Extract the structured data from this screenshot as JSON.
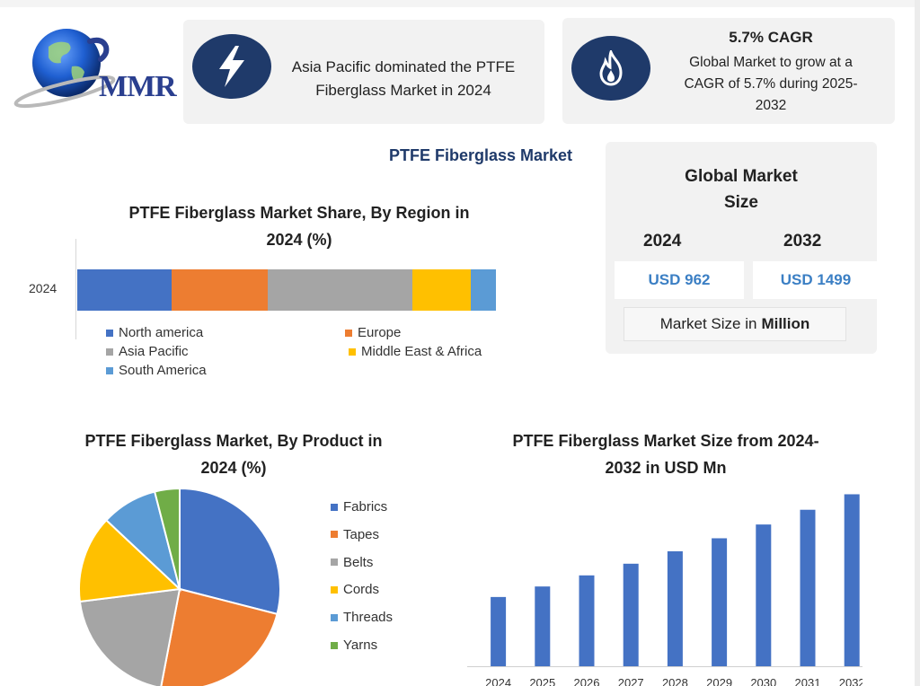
{
  "brand": {
    "logo_text": "MMR"
  },
  "header": {
    "card1": {
      "icon": "lightning-bolt-icon",
      "text_line1": "Asia Pacific dominated the PTFE",
      "text_line2": "Fiberglass Market in 2024"
    },
    "card2": {
      "icon": "flame-icon",
      "title": "5.7% CAGR",
      "text_line1": "Global Market to grow at a",
      "text_line2": "CAGR of 5.7% during 2025-",
      "text_line3": "2032"
    }
  },
  "main_title": "PTFE Fiberglass Market",
  "global_market_size": {
    "title_line1": "Global Market",
    "title_line2": "Size",
    "year1": "2024",
    "year2": "2032",
    "value1": "USD 962",
    "value2": "USD 1499",
    "unit_prefix": "Market Size in",
    "unit_bold": "Million"
  },
  "colors": {
    "north_america": "#4472c4",
    "europe": "#ed7d31",
    "asia_pacific": "#a5a5a5",
    "mea": "#ffc000",
    "south_america": "#5b9bd5",
    "yarns": "#70ad47",
    "navy": "#1f3a6a"
  },
  "chart_data": [
    {
      "type": "bar",
      "stacked": true,
      "orientation": "horizontal",
      "title_line1": "PTFE Fiberglass Market Share, By Region in",
      "title_line2": "2024 (%)",
      "categories": [
        "2024"
      ],
      "series": [
        {
          "name": "North america",
          "color": "#4472c4",
          "values": [
            22.5
          ]
        },
        {
          "name": "Europe",
          "color": "#ed7d31",
          "values": [
            23
          ]
        },
        {
          "name": "Asia Pacific",
          "color": "#a5a5a5",
          "values": [
            34.5
          ]
        },
        {
          "name": "Middle East & Africa",
          "color": "#ffc000",
          "values": [
            14
          ]
        },
        {
          "name": "South America",
          "color": "#5b9bd5",
          "values": [
            6
          ]
        }
      ],
      "legend": "bottom"
    },
    {
      "type": "pie",
      "title_line1": "PTFE Fiberglass Market, By Product in",
      "title_line2": "2024 (%)",
      "slices": [
        {
          "name": "Fabrics",
          "color": "#4472c4",
          "value": 29
        },
        {
          "name": "Tapes",
          "color": "#ed7d31",
          "value": 24
        },
        {
          "name": "Belts",
          "color": "#a5a5a5",
          "value": 20
        },
        {
          "name": "Cords",
          "color": "#ffc000",
          "value": 14
        },
        {
          "name": "Threads",
          "color": "#5b9bd5",
          "value": 9
        },
        {
          "name": "Yarns",
          "color": "#70ad47",
          "value": 4
        }
      ],
      "legend": "right"
    },
    {
      "type": "bar",
      "title_line1": "PTFE Fiberglass Market Size from 2024-",
      "title_line2": "2032 in USD Mn",
      "categories": [
        "2024",
        "2025",
        "2026",
        "2027",
        "2028",
        "2029",
        "2030",
        "2031",
        "2032"
      ],
      "values": [
        962,
        1017,
        1075,
        1136,
        1201,
        1269,
        1341,
        1418,
        1499
      ],
      "color": "#4472c4",
      "ylim": [
        600,
        1520
      ],
      "grid": false
    }
  ]
}
